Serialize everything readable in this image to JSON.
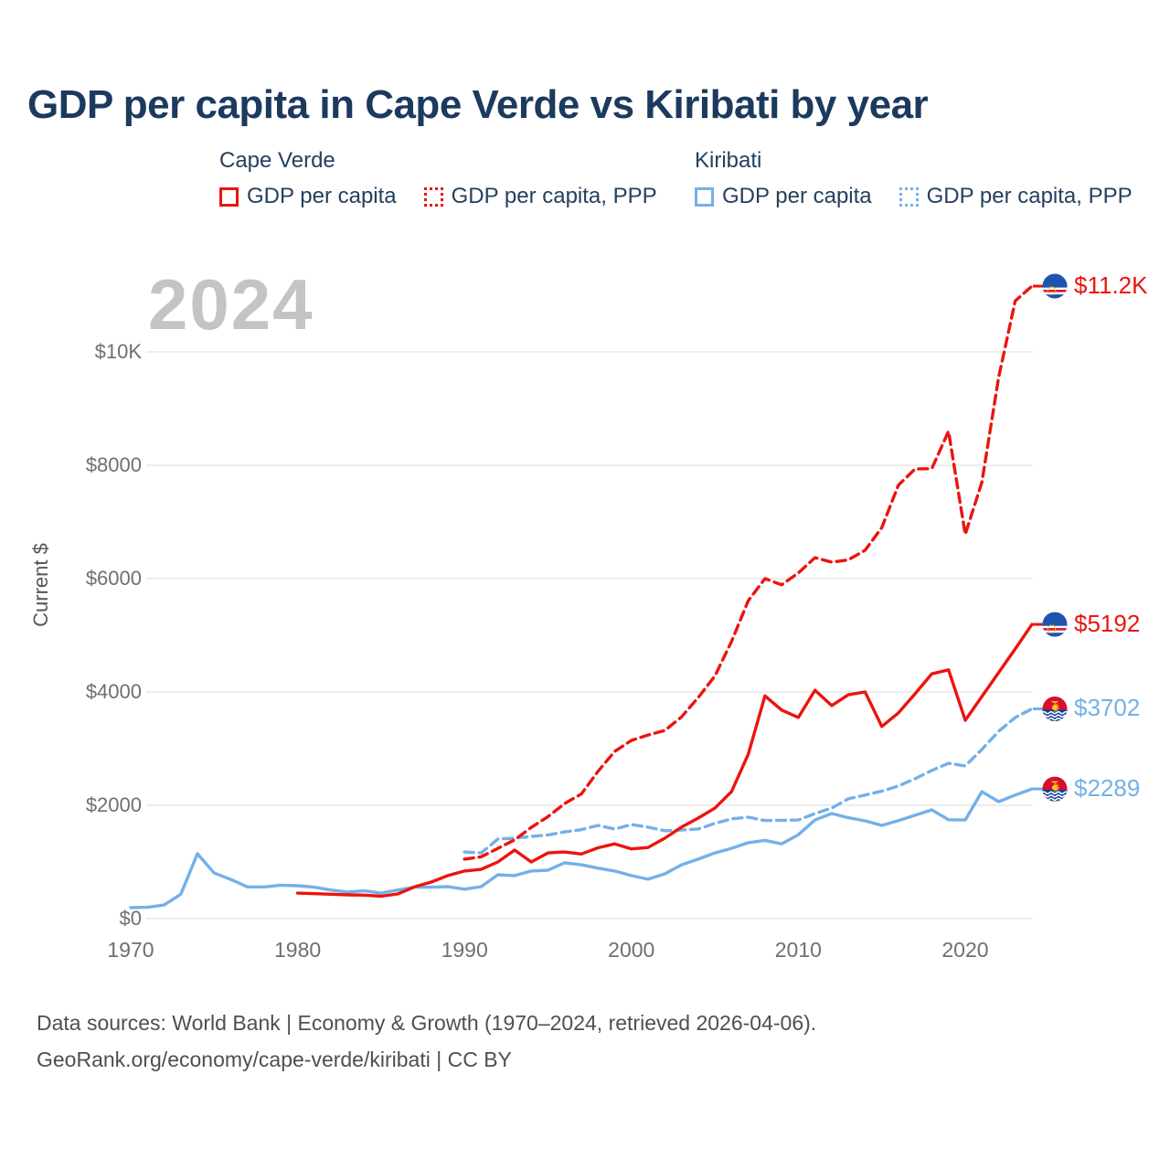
{
  "title": "GDP per capita in Cape Verde vs Kiribati by year",
  "watermark": "2024",
  "colors": {
    "cape_verde": "#ea150e",
    "kiribati": "#74b0e8",
    "title_text": "#1c3a5e",
    "axis_text": "#6f6f6f",
    "watermark_gray": "#c4c4c4",
    "gridline": "#e7e7e7"
  },
  "legend": {
    "groups": [
      {
        "name": "Cape Verde",
        "items": [
          {
            "label": "GDP per capita",
            "style": "solid",
            "color": "#ea150e"
          },
          {
            "label": "GDP per capita, PPP",
            "style": "dotted",
            "color": "#ea150e"
          }
        ]
      },
      {
        "name": "Kiribati",
        "items": [
          {
            "label": "GDP per capita",
            "style": "solid",
            "color": "#74b0e8"
          },
          {
            "label": "GDP per capita, PPP",
            "style": "dotted",
            "color": "#74b0e8"
          }
        ]
      }
    ]
  },
  "chart_data": {
    "type": "line",
    "title": "GDP per capita in Cape Verde vs Kiribati by year",
    "xlabel": "",
    "ylabel": "Current $",
    "xlim": [
      1970,
      2024
    ],
    "ylim": [
      0,
      10000
    ],
    "grid": true,
    "x_ticks": [
      1970,
      1980,
      1990,
      2000,
      2010,
      2020
    ],
    "y_ticks": [
      {
        "value": 0,
        "label": "$0"
      },
      {
        "value": 2000,
        "label": "$2000"
      },
      {
        "value": 4000,
        "label": "$4000"
      },
      {
        "value": 6000,
        "label": "$6000"
      },
      {
        "value": 8000,
        "label": "$8000"
      },
      {
        "value": 10000,
        "label": "$10K"
      }
    ],
    "series": [
      {
        "id": "cape-verde-gdp",
        "name": "Cape Verde GDP per capita",
        "country": "cape-verde",
        "color": "#ea150e",
        "dash": "solid",
        "end_label": "$5192",
        "start_year": 1980,
        "values": [
          450,
          440,
          430,
          420,
          415,
          395,
          435,
          560,
          645,
          760,
          840,
          870,
          1000,
          1210,
          1000,
          1160,
          1175,
          1140,
          1250,
          1320,
          1230,
          1255,
          1420,
          1615,
          1775,
          1950,
          2240,
          2900,
          3930,
          3680,
          3550,
          4030,
          3760,
          3950,
          4000,
          3390,
          3630,
          3970,
          4320,
          4390,
          3500,
          3920,
          4340,
          4760,
          5192
        ]
      },
      {
        "id": "cape-verde-gdp-ppp",
        "name": "Cape Verde GDP per capita, PPP",
        "country": "cape-verde",
        "color": "#ea150e",
        "dash": "dashed",
        "end_label": "$11.2K",
        "start_year": 1990,
        "values": [
          1050,
          1090,
          1240,
          1390,
          1610,
          1800,
          2030,
          2200,
          2600,
          2950,
          3145,
          3240,
          3320,
          3560,
          3900,
          4280,
          4890,
          5610,
          6000,
          5890,
          6100,
          6370,
          6290,
          6330,
          6500,
          6900,
          7650,
          7935,
          7940,
          8600,
          6780,
          7700,
          9550,
          10900,
          11161
        ]
      },
      {
        "id": "kiribati-gdp",
        "name": "Kiribati GDP per capita",
        "country": "kiribati",
        "color": "#74b0e8",
        "dash": "solid",
        "end_label": "$2289",
        "start_year": 1970,
        "values": [
          195,
          200,
          240,
          430,
          1145,
          805,
          690,
          560,
          560,
          590,
          580,
          555,
          505,
          470,
          490,
          450,
          505,
          555,
          555,
          565,
          520,
          565,
          775,
          760,
          840,
          855,
          985,
          950,
          890,
          840,
          760,
          695,
          790,
          950,
          1050,
          1160,
          1240,
          1340,
          1380,
          1320,
          1480,
          1740,
          1855,
          1780,
          1725,
          1645,
          1730,
          1825,
          1920,
          1745,
          1740,
          2240,
          2065,
          2180,
          2289
        ]
      },
      {
        "id": "kiribati-gdp-ppp",
        "name": "Kiribati GDP per capita, PPP",
        "country": "kiribati",
        "color": "#74b0e8",
        "dash": "dashed",
        "end_label": "$3702",
        "start_year": 1990,
        "values": [
          1175,
          1160,
          1405,
          1420,
          1450,
          1475,
          1530,
          1570,
          1645,
          1580,
          1660,
          1615,
          1550,
          1565,
          1580,
          1680,
          1760,
          1790,
          1730,
          1735,
          1740,
          1855,
          1950,
          2115,
          2180,
          2250,
          2340,
          2470,
          2615,
          2740,
          2695,
          2985,
          3305,
          3550,
          3702
        ]
      }
    ]
  },
  "footer": {
    "line1": "Data sources: World Bank | Economy & Growth (1970–2024, retrieved 2026-04-06).",
    "line2": "GeoRank.org/economy/cape-verde/kiribati | CC BY"
  }
}
